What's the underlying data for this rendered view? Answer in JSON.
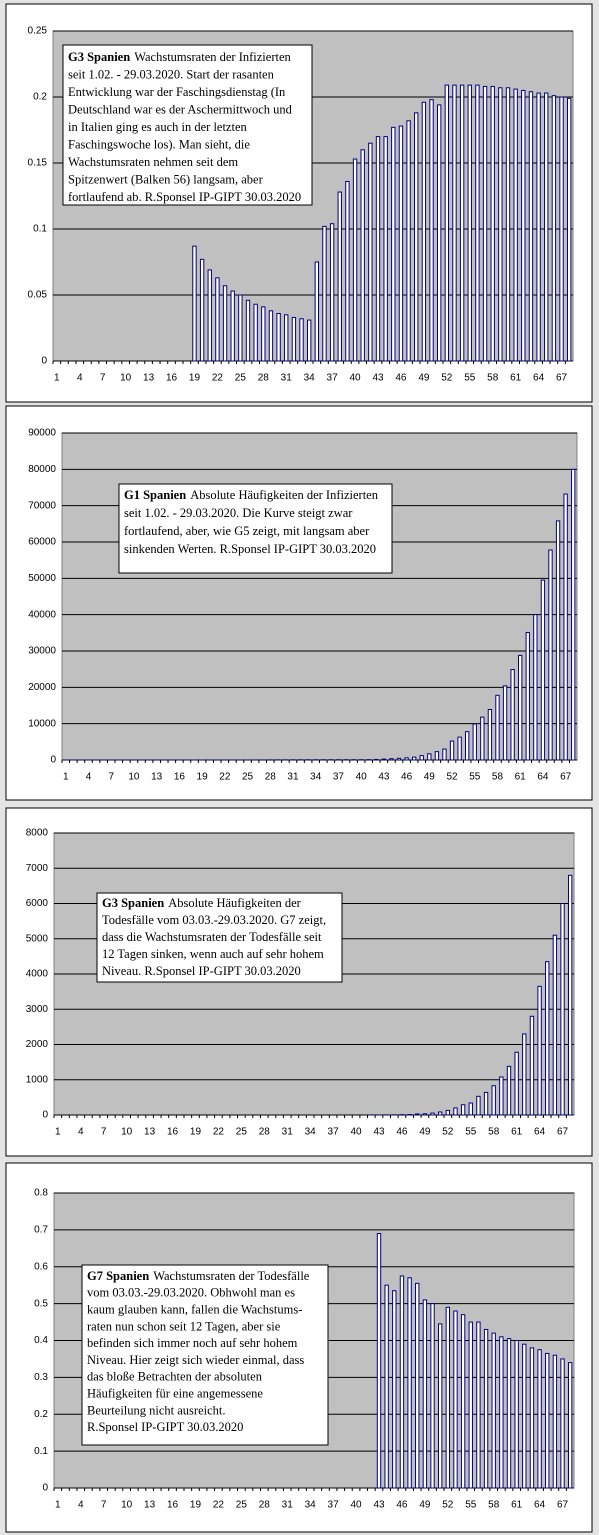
{
  "chart_data": [
    {
      "type": "bar",
      "annotation": {
        "lead": "G3 Spanien",
        "lines": [
          "Wachstumsraten der Infizierten",
          "seit 1.02. - 29.03.2020. Start der rasanten",
          "Entwicklung war der Faschingsdienstag (In",
          "Deutschland war es der Aschermittwoch und",
          "in Italien ging es auch in der letzten",
          "Faschingswoche los). Man sieht, die",
          "Wachstumsraten nehmen seit dem",
          "Spitzenwert (Balken 56) langsam, aber",
          "fortlaufend ab. R.Sponsel IP-GIPT 30.03.2020"
        ]
      },
      "categories": [
        "1",
        null,
        null,
        "4",
        null,
        null,
        "7",
        null,
        null,
        "10",
        null,
        null,
        "13",
        null,
        null,
        "16",
        null,
        null,
        "19",
        null,
        null,
        "22",
        null,
        null,
        "25",
        null,
        null,
        "28",
        null,
        null,
        "31",
        null,
        null,
        "34",
        null,
        null,
        "37",
        null,
        null,
        "40",
        null,
        null,
        "43",
        null,
        null,
        "46",
        null,
        null,
        "49",
        null,
        null,
        "52",
        null,
        null,
        "55",
        null,
        null,
        "58",
        null,
        null,
        "61",
        null,
        null,
        "64",
        null,
        null,
        "67",
        null
      ],
      "values": [
        null,
        null,
        null,
        null,
        null,
        null,
        null,
        null,
        null,
        null,
        null,
        null,
        null,
        null,
        null,
        null,
        null,
        null,
        0.087,
        0.077,
        0.069,
        0.063,
        0.057,
        0.053,
        0.05,
        0.046,
        0.043,
        0.041,
        0.038,
        0.036,
        0.035,
        0.033,
        0.032,
        0.031,
        0.075,
        0.102,
        0.104,
        0.128,
        0.136,
        0.153,
        0.16,
        0.165,
        0.17,
        0.17,
        0.177,
        0.178,
        0.182,
        0.188,
        0.196,
        0.198,
        0.194,
        0.209,
        0.209,
        0.209,
        0.209,
        0.209,
        0.208,
        0.208,
        0.207,
        0.207,
        0.206,
        0.205,
        0.204,
        0.203,
        0.203,
        0.201,
        0.2,
        0.199
      ],
      "color": "#000080",
      "ylim": [
        0,
        0.25
      ],
      "yticks": [
        0,
        0.05,
        0.1,
        0.15,
        0.2,
        0.25
      ],
      "grid": true
    },
    {
      "type": "bar",
      "annotation": {
        "lead": "G1 Spanien",
        "lines": [
          "Absolute Häufigkeiten der Infizierten",
          "seit 1.02. - 29.03.2020. Die Kurve steigt zwar",
          "fortlaufend, aber, wie G5 zeigt, mit langsam aber",
          "sinkenden Werten.  R.Sponsel IP-GIPT 30.03.2020"
        ]
      },
      "categories": [
        "1",
        null,
        null,
        "4",
        null,
        null,
        "7",
        null,
        null,
        "10",
        null,
        null,
        "13",
        null,
        null,
        "16",
        null,
        null,
        "19",
        null,
        null,
        "22",
        null,
        null,
        "25",
        null,
        null,
        "28",
        null,
        null,
        "31",
        null,
        null,
        "34",
        null,
        null,
        "37",
        null,
        null,
        "40",
        null,
        null,
        "43",
        null,
        null,
        "46",
        null,
        null,
        "49",
        null,
        null,
        "52",
        null,
        null,
        "55",
        null,
        null,
        "58",
        null,
        null,
        "61",
        null,
        null,
        "64",
        null,
        null,
        "67",
        null
      ],
      "values": [
        1,
        1,
        1,
        1,
        1,
        1,
        1,
        1,
        1,
        2,
        2,
        2,
        2,
        2,
        2,
        2,
        2,
        2,
        2,
        2,
        2,
        2,
        2,
        2,
        6,
        13,
        15,
        32,
        45,
        50,
        55,
        60,
        65,
        70,
        75,
        77,
        78,
        79,
        80,
        80,
        100,
        150,
        250,
        350,
        450,
        600,
        800,
        1200,
        1700,
        2300,
        3000,
        5200,
        6300,
        7800,
        9900,
        11800,
        13900,
        17800,
        20400,
        24900,
        28800,
        35100,
        40000,
        49500,
        57800,
        65800,
        73200,
        80000
      ],
      "color": "#000080",
      "ylim": [
        0,
        90000
      ],
      "yticks": [
        0,
        10000,
        20000,
        30000,
        40000,
        50000,
        60000,
        70000,
        80000,
        90000
      ],
      "grid": true
    },
    {
      "type": "bar",
      "annotation": {
        "lead": "G3 Spanien",
        "lines": [
          "Absolute Häufigkeiten der",
          "Todesfälle vom 03.03.-29.03.2020. G7 zeigt,",
          "dass die Wachstumsraten der Todesfälle seit",
          "12 Tagen sinken, wenn auch auf sehr hohem",
          "Niveau.   R.Sponsel IP-GIPT 30.03.2020"
        ]
      },
      "categories": [
        "1",
        null,
        null,
        "4",
        null,
        null,
        "7",
        null,
        null,
        "10",
        null,
        null,
        "13",
        null,
        null,
        "16",
        null,
        null,
        "19",
        null,
        null,
        "22",
        null,
        null,
        "25",
        null,
        null,
        "28",
        null,
        null,
        "31",
        null,
        null,
        "34",
        null,
        null,
        "37",
        null,
        null,
        "40",
        null,
        null,
        "43",
        null,
        null,
        "46",
        null,
        null,
        "49",
        null,
        null,
        "52",
        null,
        null,
        "55",
        null,
        null,
        "58",
        null,
        null,
        "61",
        null,
        null,
        "64",
        null,
        null,
        "67",
        null
      ],
      "values": [
        0,
        0,
        0,
        0,
        0,
        0,
        0,
        0,
        0,
        0,
        0,
        0,
        0,
        0,
        0,
        0,
        0,
        0,
        0,
        0,
        0,
        0,
        0,
        0,
        0,
        0,
        0,
        0,
        0,
        0,
        0,
        0,
        0,
        0,
        0,
        0,
        0,
        0,
        0,
        0,
        0,
        1,
        2,
        3,
        5,
        10,
        15,
        30,
        35,
        55,
        85,
        130,
        200,
        290,
        340,
        530,
        640,
        830,
        1080,
        1380,
        1780,
        2300,
        2800,
        3650,
        4350,
        5100,
        6000,
        6800
      ],
      "color": "#000080",
      "ylim": [
        0,
        8000
      ],
      "yticks": [
        0,
        1000,
        2000,
        3000,
        4000,
        5000,
        6000,
        7000,
        8000
      ],
      "grid": true
    },
    {
      "type": "bar",
      "annotation": {
        "lead": "G7 Spanien",
        "lines": [
          "Wachstumsraten der Todesfälle",
          "vom 03.03.-29.03.2020. Obhwohl man es",
          "kaum glauben kann, fallen die Wachstums-",
          "raten nun schon seit 12 Tagen, aber sie",
          "befinden sich immer noch auf sehr hohem",
          "Niveau.  Hier zeigt sich wieder einmal, dass",
          "das bloße Betrachten der absoluten",
          "Häufigkeiten für eine angemessene",
          "Beurteilung nicht ausreicht.",
          "R.Sponsel IP-GIPT 30.03.2020"
        ]
      },
      "categories": [
        "1",
        null,
        null,
        "4",
        null,
        null,
        "7",
        null,
        null,
        "10",
        null,
        null,
        "13",
        null,
        null,
        "16",
        null,
        null,
        "19",
        null,
        null,
        "22",
        null,
        null,
        "25",
        null,
        null,
        "28",
        null,
        null,
        "31",
        null,
        null,
        "34",
        null,
        null,
        "37",
        null,
        null,
        "40",
        null,
        null,
        "43",
        null,
        null,
        "46",
        null,
        null,
        "49",
        null,
        null,
        "52",
        null,
        null,
        "55",
        null,
        null,
        "58",
        null,
        null,
        "61",
        null,
        null,
        "64",
        null,
        null,
        "67",
        null
      ],
      "values": [
        null,
        null,
        null,
        null,
        null,
        null,
        null,
        null,
        null,
        null,
        null,
        null,
        null,
        null,
        null,
        null,
        null,
        null,
        null,
        null,
        null,
        null,
        null,
        null,
        null,
        null,
        null,
        null,
        null,
        null,
        null,
        null,
        null,
        null,
        null,
        null,
        null,
        null,
        null,
        null,
        null,
        null,
        0.69,
        0.55,
        0.535,
        0.575,
        0.57,
        0.555,
        0.51,
        0.5,
        0.445,
        0.49,
        0.48,
        0.47,
        0.45,
        0.45,
        0.43,
        0.42,
        0.41,
        0.405,
        0.4,
        0.39,
        0.38,
        0.375,
        0.365,
        0.36,
        0.35,
        0.34
      ],
      "color": "#000080",
      "ylim": [
        0,
        0.8
      ],
      "yticks": [
        0,
        0.1,
        0.2,
        0.3,
        0.4,
        0.5,
        0.6,
        0.7,
        0.8
      ],
      "grid": true
    }
  ]
}
